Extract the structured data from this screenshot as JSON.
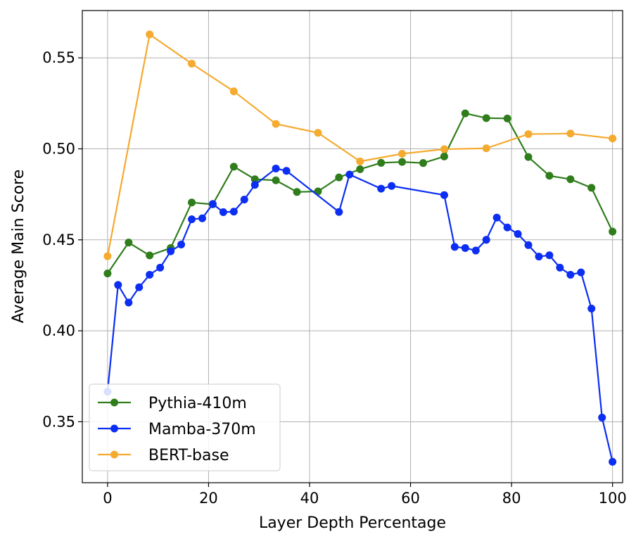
{
  "chart_data": {
    "type": "line",
    "title": "",
    "xlabel": "Layer Depth Percentage",
    "ylabel": "Average Main Score",
    "xlim": [
      -5,
      102
    ],
    "ylim": [
      0.3165,
      0.576
    ],
    "xticks": [
      0,
      20,
      40,
      60,
      80,
      100
    ],
    "yticks": [
      0.35,
      0.4,
      0.45,
      0.5,
      0.55
    ],
    "xtick_labels": [
      "0",
      "20",
      "40",
      "60",
      "80",
      "100"
    ],
    "ytick_labels": [
      "0.35",
      "0.40",
      "0.45",
      "0.50",
      "0.55"
    ],
    "grid": true,
    "legend_position": "lower-left",
    "series": [
      {
        "name": "Pythia-410m",
        "color": "#2f7d1b",
        "x": [
          0,
          4.17,
          8.33,
          12.5,
          16.67,
          20.83,
          25,
          29.17,
          33.33,
          37.5,
          41.67,
          45.83,
          50,
          54.17,
          58.33,
          62.5,
          66.67,
          70.83,
          75,
          79.17,
          83.33,
          87.5,
          91.67,
          95.83,
          100
        ],
        "y": [
          0.4315,
          0.4485,
          0.4414,
          0.4455,
          0.4705,
          0.4695,
          0.4902,
          0.4833,
          0.4827,
          0.4763,
          0.4766,
          0.4843,
          0.4888,
          0.4923,
          0.4928,
          0.4922,
          0.4958,
          0.5195,
          0.5169,
          0.5167,
          0.4955,
          0.4852,
          0.4833,
          0.4786,
          0.4545
        ]
      },
      {
        "name": "Mamba-370m",
        "color": "#0b2ef2",
        "x": [
          0,
          2.08,
          4.17,
          6.25,
          8.33,
          10.42,
          12.5,
          14.58,
          16.67,
          18.75,
          20.83,
          22.92,
          25,
          27.08,
          29.17,
          33.33,
          35.42,
          45.83,
          47.92,
          54.17,
          56.25,
          66.67,
          68.75,
          70.83,
          72.92,
          75,
          77.08,
          79.17,
          81.25,
          83.33,
          85.42,
          87.5,
          89.58,
          91.67,
          93.75,
          95.83,
          97.92,
          100
        ],
        "y": [
          0.3665,
          0.4252,
          0.4155,
          0.4239,
          0.4308,
          0.4347,
          0.4437,
          0.4474,
          0.4613,
          0.4618,
          0.4697,
          0.4652,
          0.4655,
          0.4721,
          0.4802,
          0.4892,
          0.4879,
          0.4653,
          0.4859,
          0.4781,
          0.4796,
          0.4746,
          0.4461,
          0.4455,
          0.4441,
          0.45,
          0.4622,
          0.4568,
          0.4532,
          0.4471,
          0.4408,
          0.4415,
          0.4347,
          0.4308,
          0.4321,
          0.4122,
          0.3523,
          0.328
        ]
      },
      {
        "name": "BERT-base",
        "color": "#f5aa30",
        "x": [
          0,
          8.33,
          16.67,
          25,
          33.33,
          41.67,
          50,
          58.33,
          66.67,
          75,
          83.33,
          91.67,
          100
        ],
        "y": [
          0.441,
          0.5629,
          0.5468,
          0.5316,
          0.5137,
          0.5088,
          0.4931,
          0.4973,
          0.4998,
          0.5003,
          0.5081,
          0.5084,
          0.5057
        ]
      }
    ]
  }
}
